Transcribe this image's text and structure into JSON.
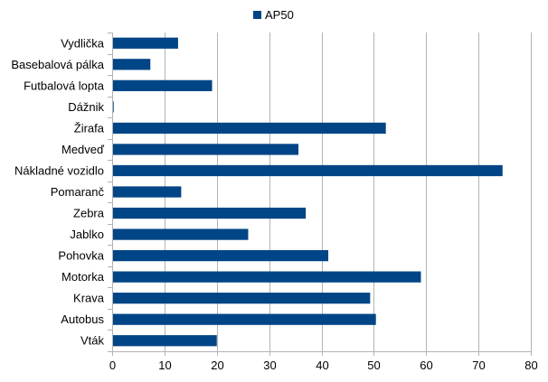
{
  "chart_data": {
    "type": "bar",
    "orientation": "horizontal",
    "categories": [
      "Vydlička",
      "Basebalová pálka",
      "Futbalová lopta",
      "Dážnik",
      "Žirafa",
      "Medveď",
      "Nákladné vozidlo",
      "Pomaranč",
      "Zebra",
      "Jablko",
      "Pohovka",
      "Motorka",
      "Krava",
      "Autobus",
      "Vták"
    ],
    "series": [
      {
        "name": "AP50",
        "color": "#004586",
        "values": [
          12.6,
          7.3,
          19.1,
          0.3,
          52.3,
          35.6,
          74.6,
          13.2,
          37.0,
          26.0,
          41.3,
          59.0,
          49.3,
          50.4,
          20.0
        ]
      }
    ],
    "xlim": [
      0,
      80
    ],
    "x_ticks": [
      0,
      10,
      20,
      30,
      40,
      50,
      60,
      70,
      80
    ],
    "grid": "vertical",
    "legend_position": "top-center"
  }
}
